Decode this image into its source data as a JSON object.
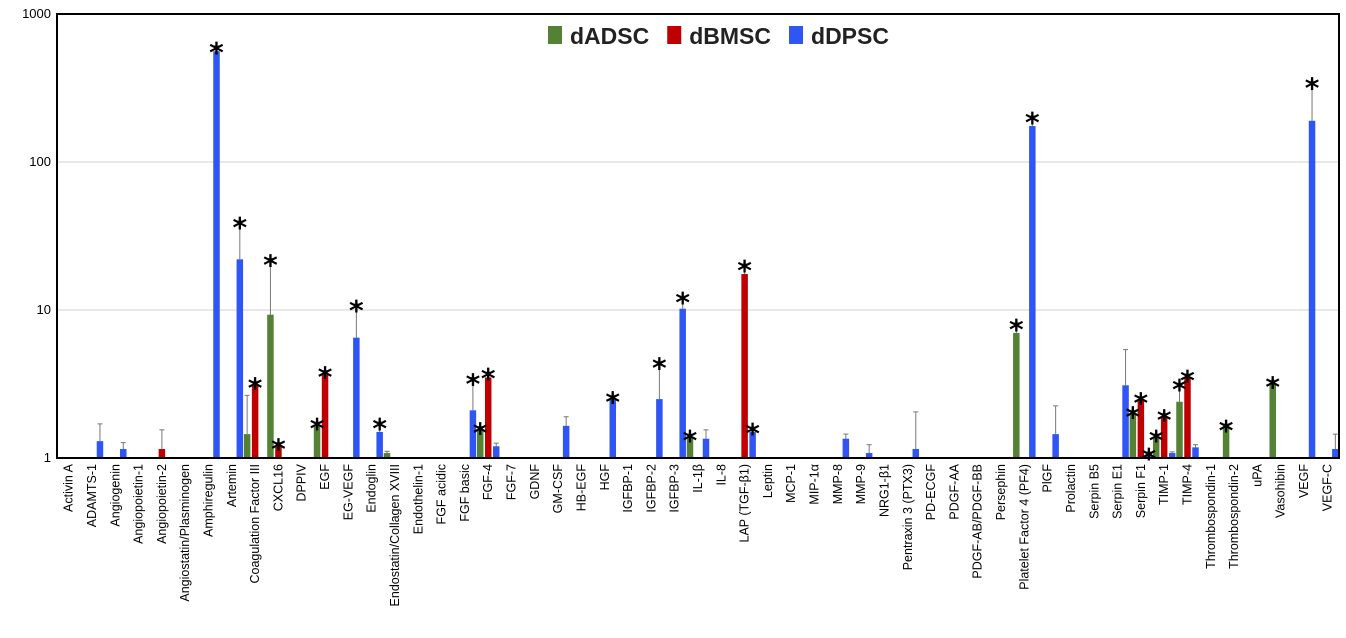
{
  "chart_data": {
    "type": "bar",
    "scale": "log",
    "ylim": [
      1,
      1000
    ],
    "y_ticks": [
      "1",
      "10",
      "100",
      "1000"
    ],
    "grid": "horizontal",
    "legend_position": "top-center",
    "colors": {
      "dADSC": "#548235",
      "dBMSC": "#c00000",
      "dDPSC": "#2f55f5"
    },
    "categories": [
      "Activin A",
      "ADAMTS-1",
      "Angiogenin",
      "Angiopoietin-1",
      "Angiopoietin-2",
      "Angiostatin/Plasminogen",
      "Amphiregulin",
      "Artemin",
      "Coagulation Factor III",
      "CXCL16",
      "DPPIV",
      "EGF",
      "EG-VEGF",
      "Endoglin",
      "Endostatin/Collagen XVIII",
      "Endothelin-1",
      "FGF acidic",
      "FGF basic",
      "FGF-4",
      "FGF-7",
      "GDNF",
      "GM-CSF",
      "HB-EGF",
      "HGF",
      "IGFBP-1",
      "IGFBP-2",
      "IGFBP-3",
      "IL-1β",
      "IL-8",
      "LAP (TGF-β1)",
      "Leptin",
      "MCP-1",
      "MIP-1α",
      "MMP-8",
      "MMP-9",
      "NRG1-β1",
      "Pentraxin 3 (PTX3)",
      "PD-ECGF",
      "PDGF-AA",
      "PDGF-AB/PDGF-BB",
      "Persephin",
      "Platelet Factor 4 (PF4)",
      "PlGF",
      "Prolactin",
      "Serpin B5",
      "Serpin E1",
      "Serpin F1",
      "TIMP-1",
      "TIMP-4",
      "Thrombospondin-1",
      "Thrombospondin-2",
      "uPA",
      "Vasohibin",
      "VEGF",
      "VEGF-C"
    ],
    "series": [
      {
        "name": "dADSC",
        "values": [
          1.0,
          1.0,
          1.0,
          1.0,
          1.0,
          1.0,
          1.0,
          1.0,
          1.45,
          9.3,
          1.0,
          1.65,
          1.0,
          1.0,
          1.08,
          1.0,
          1.0,
          1.0,
          1.55,
          1.0,
          1.0,
          1.0,
          1.0,
          1.0,
          1.0,
          1.0,
          1.0,
          1.4,
          1.0,
          1.0,
          1.0,
          1.0,
          1.0,
          1.0,
          1.0,
          1.0,
          1.0,
          1.0,
          1.0,
          1.0,
          1.0,
          7.0,
          1.0,
          1.0,
          1.0,
          1.0,
          2.0,
          1.4,
          2.4,
          1.0,
          1.65,
          1.0,
          3.2,
          1.0,
          1.0
        ],
        "errors": [
          0.0,
          0.0,
          0.0,
          0.0,
          0.0,
          0.0,
          0.0,
          0.0,
          1.2,
          13.0,
          0.0,
          0.1,
          0.0,
          0.0,
          0.03,
          0.0,
          0.0,
          0.0,
          0.08,
          0.0,
          0.0,
          0.0,
          0.0,
          0.0,
          0.0,
          0.0,
          0.0,
          0.05,
          0.0,
          0.0,
          0.0,
          0.0,
          0.0,
          0.0,
          0.0,
          0.0,
          0.0,
          0.0,
          0.0,
          0.0,
          0.0,
          1.2,
          0.0,
          0.0,
          0.0,
          0.0,
          0.1,
          0.05,
          0.8,
          0.0,
          0.05,
          0.0,
          0.15,
          0.0,
          0.0
        ],
        "significant": [
          false,
          false,
          false,
          false,
          false,
          false,
          false,
          false,
          false,
          true,
          false,
          true,
          false,
          false,
          false,
          false,
          false,
          false,
          true,
          false,
          false,
          false,
          false,
          false,
          false,
          false,
          false,
          true,
          false,
          false,
          false,
          false,
          false,
          false,
          false,
          false,
          false,
          false,
          false,
          false,
          false,
          true,
          false,
          false,
          false,
          false,
          true,
          true,
          true,
          false,
          true,
          false,
          true,
          false,
          false
        ]
      },
      {
        "name": "dBMSC",
        "values": [
          1.0,
          1.0,
          1.0,
          1.0,
          1.15,
          1.0,
          1.0,
          1.0,
          3.1,
          1.22,
          1.0,
          3.7,
          1.0,
          1.0,
          1.0,
          1.0,
          1.0,
          1.0,
          3.5,
          1.0,
          1.0,
          1.0,
          1.0,
          1.0,
          1.0,
          1.0,
          1.0,
          1.0,
          1.0,
          17.5,
          1.0,
          1.0,
          1.0,
          1.0,
          1.0,
          1.0,
          1.0,
          1.0,
          1.0,
          1.0,
          1.0,
          1.0,
          1.0,
          1.0,
          1.0,
          1.0,
          2.5,
          1.9,
          3.5,
          1.0,
          1.0,
          1.0,
          1.0,
          1.0,
          1.0
        ],
        "errors": [
          0.0,
          0.0,
          0.0,
          0.0,
          0.4,
          0.0,
          0.0,
          0.0,
          0.2,
          0.05,
          0.0,
          0.2,
          0.0,
          0.0,
          0.0,
          0.0,
          0.0,
          0.0,
          0.3,
          0.0,
          0.0,
          0.0,
          0.0,
          0.0,
          0.0,
          0.0,
          0.0,
          0.0,
          0.0,
          3.0,
          0.0,
          0.0,
          0.0,
          0.0,
          0.0,
          0.0,
          0.0,
          0.0,
          0.0,
          0.0,
          0.0,
          0.0,
          0.0,
          0.0,
          0.0,
          0.0,
          0.1,
          0.1,
          0.2,
          0.0,
          0.0,
          0.0,
          0.0,
          0.0,
          0.0
        ],
        "significant": [
          false,
          false,
          false,
          false,
          false,
          false,
          false,
          false,
          true,
          true,
          false,
          true,
          false,
          false,
          false,
          false,
          false,
          false,
          true,
          false,
          false,
          false,
          false,
          false,
          false,
          false,
          false,
          false,
          false,
          true,
          false,
          false,
          false,
          false,
          false,
          false,
          false,
          false,
          false,
          false,
          false,
          false,
          false,
          false,
          false,
          false,
          true,
          true,
          true,
          false,
          false,
          false,
          false,
          false,
          false
        ]
      },
      {
        "name": "dDPSC",
        "values": [
          1.0,
          1.3,
          1.15,
          1.0,
          1.0,
          1.0,
          560,
          22,
          1.0,
          1.0,
          1.0,
          1.0,
          6.5,
          1.5,
          1.0,
          1.0,
          1.0,
          2.1,
          1.2,
          1.0,
          1.0,
          1.65,
          1.0,
          2.5,
          1.0,
          2.5,
          10.2,
          1.35,
          1.0,
          1.5,
          1.0,
          1.0,
          1.0,
          1.35,
          1.08,
          1.0,
          1.15,
          1.0,
          1.0,
          1.0,
          1.0,
          175,
          1.45,
          1.0,
          1.0,
          3.1,
          1.08,
          1.08,
          1.18,
          1.0,
          1.0,
          1.0,
          1.0,
          190,
          1.15
        ],
        "errors": [
          0.0,
          0.4,
          0.12,
          0.0,
          0.0,
          0.0,
          50,
          18,
          0.0,
          0.0,
          0.0,
          0.0,
          4.5,
          0.25,
          0.0,
          0.0,
          0.0,
          1.4,
          0.06,
          0.0,
          0.0,
          0.25,
          0.0,
          0.15,
          0.0,
          2.0,
          2.2,
          0.2,
          0.0,
          0.12,
          0.0,
          0.0,
          0.0,
          0.1,
          0.15,
          0.0,
          0.9,
          0.0,
          0.0,
          0.0,
          0.0,
          30,
          0.8,
          0.0,
          0.0,
          2.3,
          0.02,
          0.02,
          0.05,
          0.0,
          0.0,
          0.0,
          0.0,
          160,
          0.3
        ],
        "significant": [
          false,
          false,
          false,
          false,
          false,
          false,
          true,
          true,
          false,
          false,
          false,
          false,
          true,
          true,
          false,
          false,
          false,
          true,
          false,
          false,
          false,
          false,
          false,
          true,
          false,
          true,
          true,
          false,
          false,
          true,
          false,
          false,
          false,
          false,
          false,
          false,
          false,
          false,
          false,
          false,
          false,
          true,
          false,
          false,
          false,
          false,
          true,
          false,
          false,
          false,
          false,
          false,
          false,
          true,
          false
        ]
      }
    ],
    "significance_marker": "*"
  }
}
